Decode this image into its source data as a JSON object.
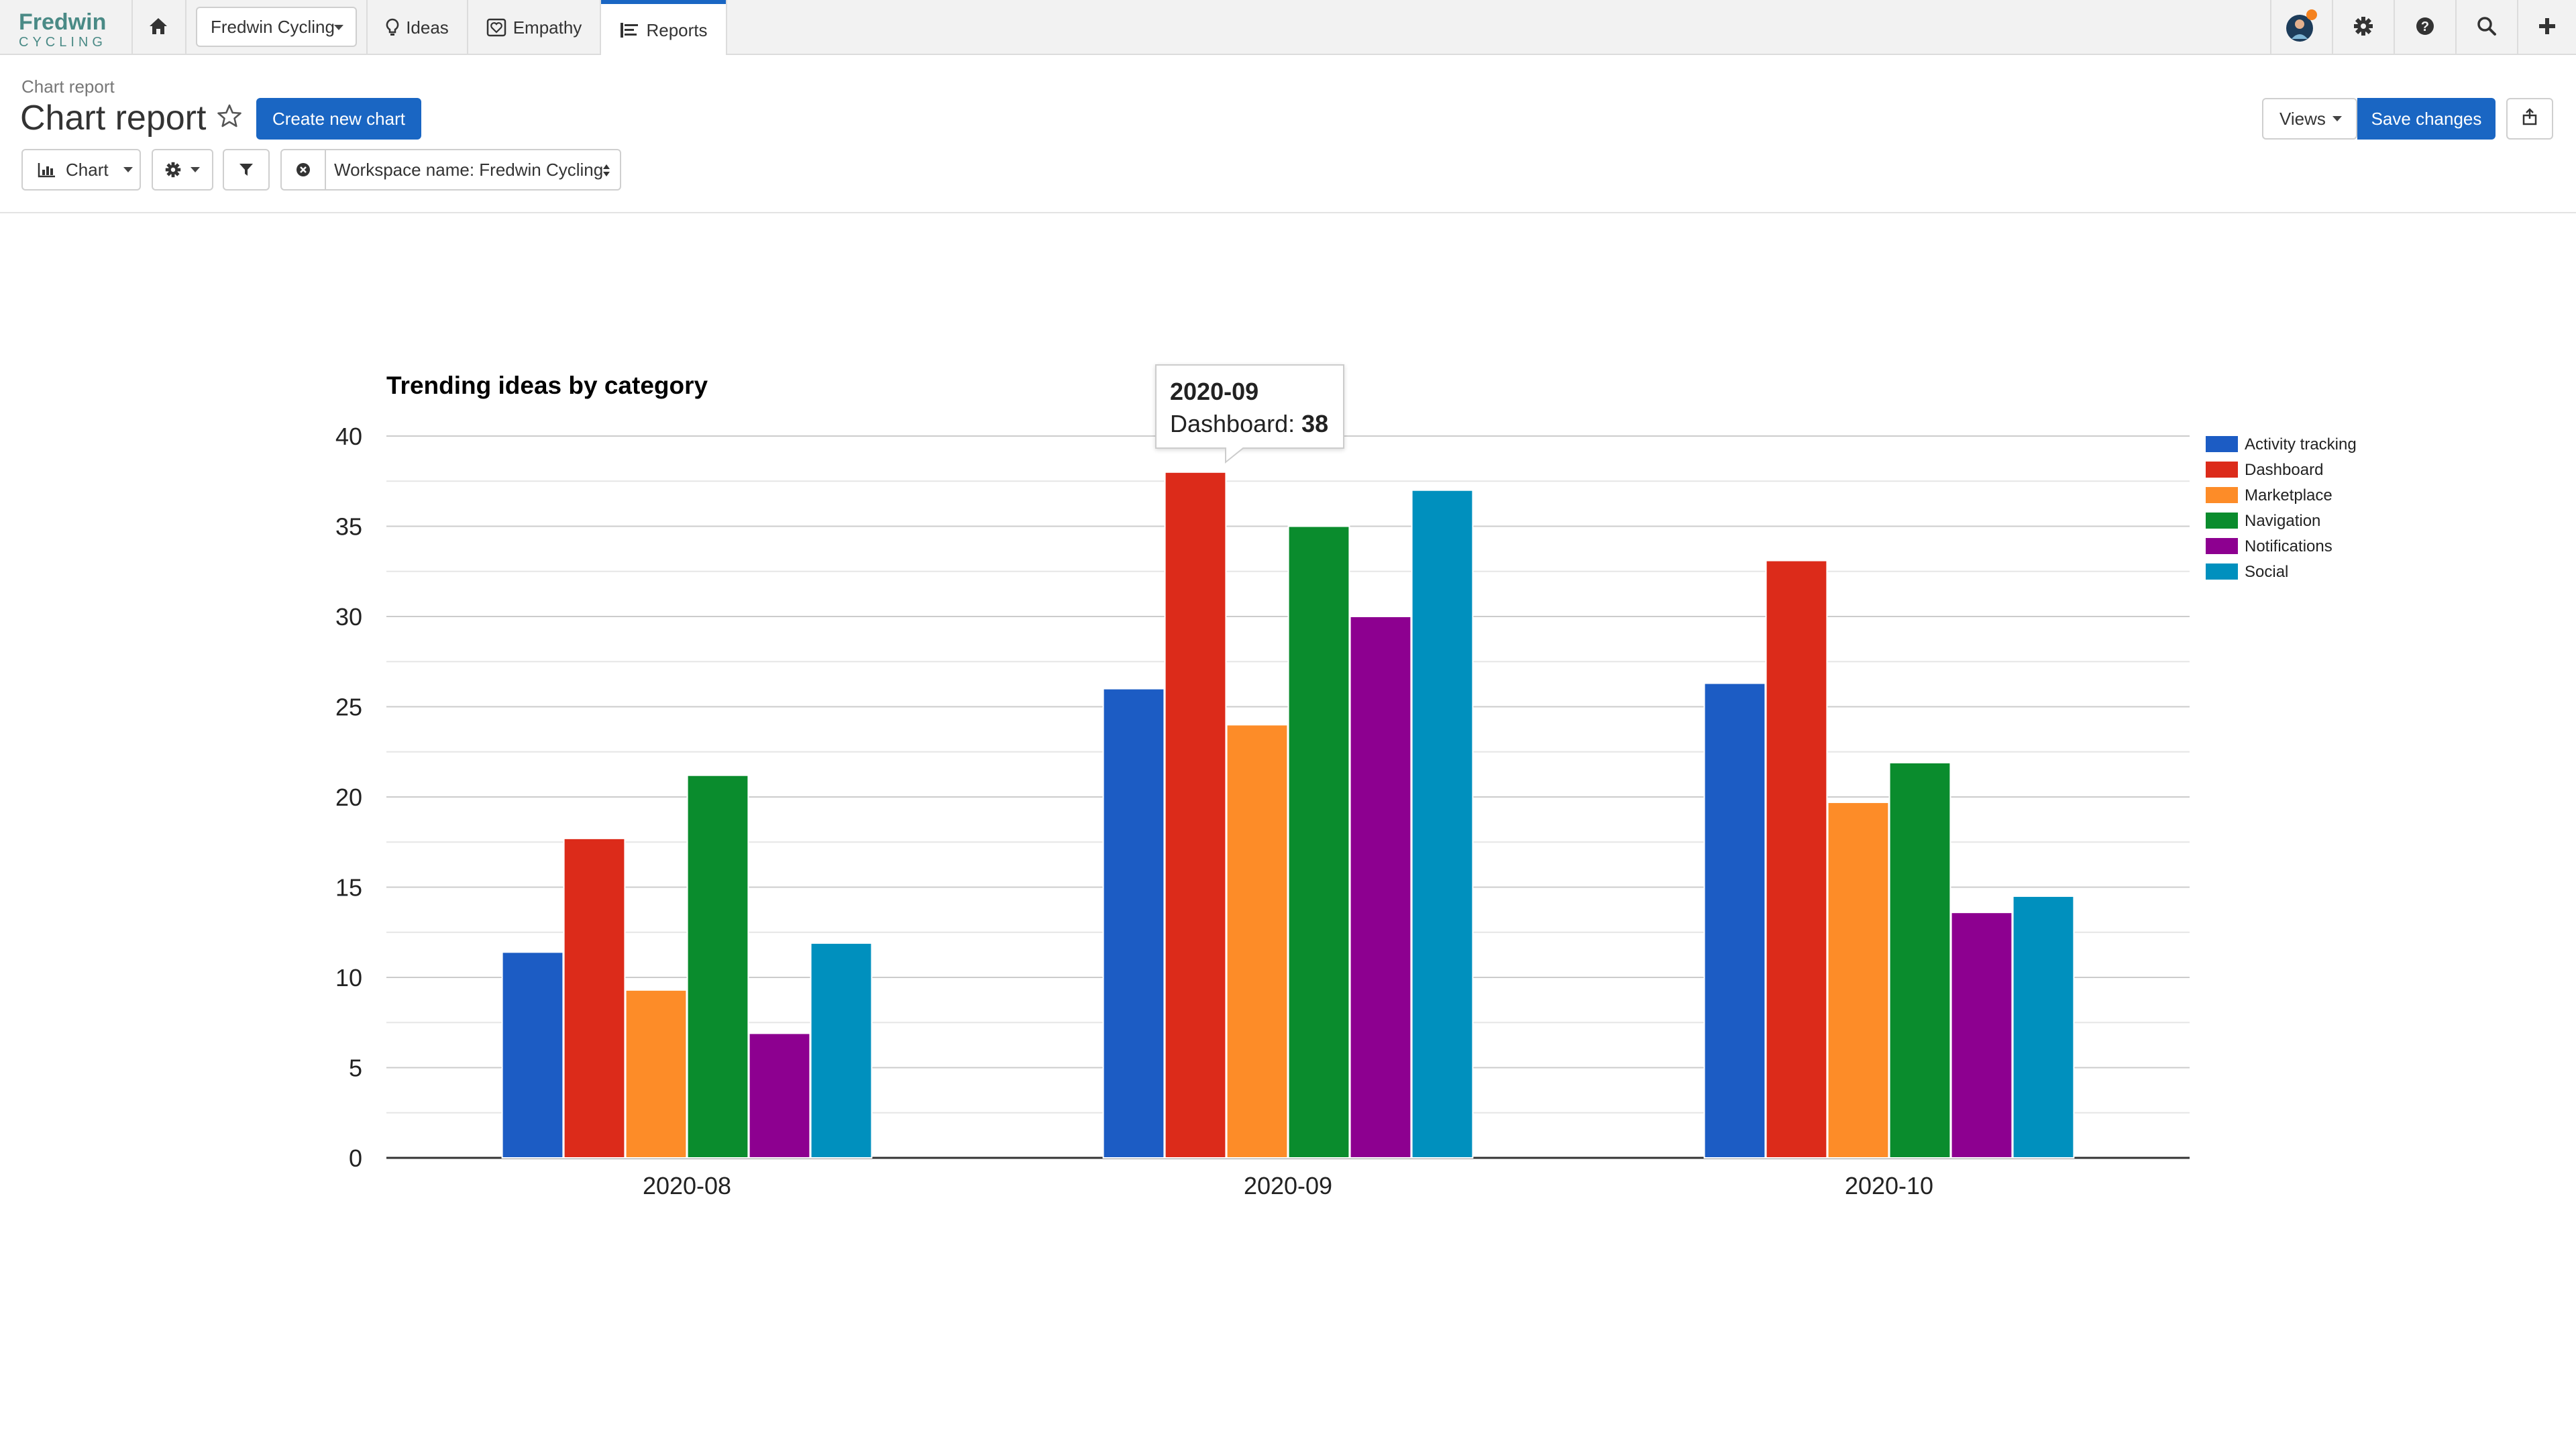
{
  "brand": {
    "name_top": "Fredwin",
    "name_bottom": "CYCLING"
  },
  "topnav": {
    "workspace": "Fredwin Cycling",
    "tabs": [
      {
        "label": "Ideas",
        "icon": "lightbulb-icon"
      },
      {
        "label": "Empathy",
        "icon": "heart-icon"
      },
      {
        "label": "Reports",
        "icon": "report-icon",
        "active": true
      }
    ],
    "right_icons": [
      "avatar",
      "gear-icon",
      "help-icon",
      "search-icon",
      "plus-icon"
    ],
    "notification_color": "#f5821f"
  },
  "header": {
    "breadcrumb": "Chart report",
    "title": "Chart report",
    "create_button": "Create new chart",
    "views_label": "Views",
    "save_button": "Save changes"
  },
  "toolbar": {
    "chart_label": "Chart",
    "filter_label": "Workspace name: Fredwin Cycling"
  },
  "tooltip": {
    "title": "2020-09",
    "series": "Dashboard",
    "value": "38"
  },
  "colors": {
    "accent": "#1a66c3"
  },
  "chart_data": {
    "type": "bar",
    "title": "Trending ideas by category",
    "xlabel": "",
    "ylabel": "",
    "categories": [
      "2020-08",
      "2020-09",
      "2020-10"
    ],
    "ylim": [
      0,
      40
    ],
    "yticks": [
      0,
      5,
      10,
      15,
      20,
      25,
      30,
      35,
      40
    ],
    "grid": true,
    "legend_position": "right",
    "series": [
      {
        "name": "Activity tracking",
        "color": "#1c5cc4",
        "values": [
          11.4,
          26,
          26.3
        ]
      },
      {
        "name": "Dashboard",
        "color": "#dc2b1a",
        "values": [
          17.7,
          38,
          33.1
        ]
      },
      {
        "name": "Marketplace",
        "color": "#fd8c28",
        "values": [
          9.3,
          24,
          19.7
        ]
      },
      {
        "name": "Navigation",
        "color": "#0a8c2d",
        "values": [
          21.2,
          35,
          21.9
        ]
      },
      {
        "name": "Notifications",
        "color": "#8d0090",
        "values": [
          6.9,
          30,
          13.6
        ]
      },
      {
        "name": "Social",
        "color": "#0090be",
        "values": [
          11.9,
          37,
          14.5
        ]
      }
    ]
  }
}
